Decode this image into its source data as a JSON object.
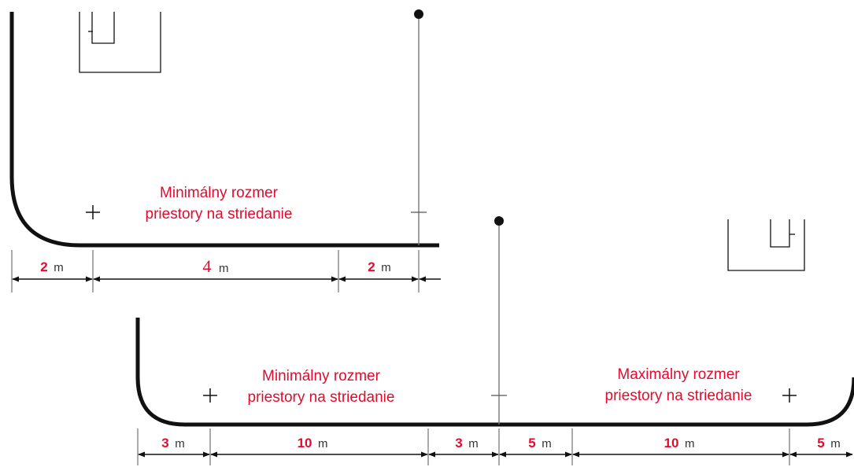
{
  "colors": {
    "label_red": "#e30b2d",
    "line_black": "#111111",
    "unit_gray": "#333333"
  },
  "top_diagram": {
    "zone_label_line1": "Minimálny rozmer",
    "zone_label_line2": "priestory na striedanie",
    "dimensions": [
      {
        "value": "2",
        "unit": "m"
      },
      {
        "value": "4",
        "unit": "m"
      },
      {
        "value": "2",
        "unit": "m"
      }
    ]
  },
  "bottom_diagram": {
    "min_zone_label_line1": "Minimálny rozmer",
    "min_zone_label_line2": "priestory na striedanie",
    "max_zone_label_line1": "Maximálny rozmer",
    "max_zone_label_line2": "priestory na striedanie",
    "dimensions": [
      {
        "value": "3",
        "unit": "m"
      },
      {
        "value": "10",
        "unit": "m"
      },
      {
        "value": "3",
        "unit": "m"
      },
      {
        "value": "5",
        "unit": "m"
      },
      {
        "value": "10",
        "unit": "m"
      },
      {
        "value": "5",
        "unit": "m"
      }
    ]
  }
}
